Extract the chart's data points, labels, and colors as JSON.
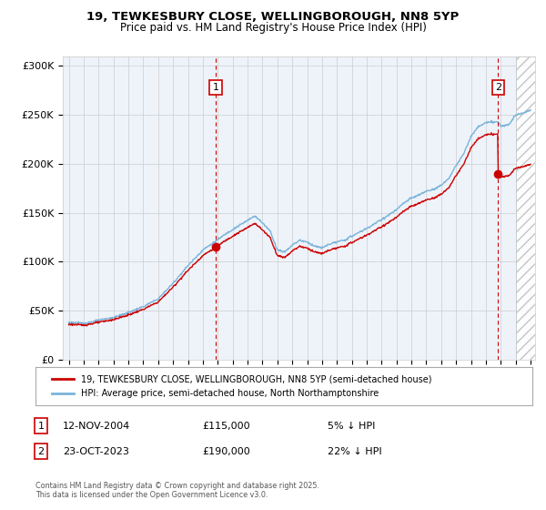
{
  "title_line1": "19, TEWKESBURY CLOSE, WELLINGBOROUGH, NN8 5YP",
  "title_line2": "Price paid vs. HM Land Registry's House Price Index (HPI)",
  "bg_color": "#eef3fa",
  "hpi_color": "#7ab4d8",
  "price_color": "#cc0000",
  "vline_color": "#cc0000",
  "grid_color": "#cccccc",
  "ylim": [
    0,
    310000
  ],
  "yticks": [
    0,
    50000,
    100000,
    150000,
    200000,
    250000,
    300000
  ],
  "ytick_labels": [
    "£0",
    "£50K",
    "£100K",
    "£150K",
    "£200K",
    "£250K",
    "£300K"
  ],
  "sale1_year": 2004.87,
  "sale1_price": 115000,
  "sale2_year": 2023.82,
  "sale2_price": 190000,
  "xstart": 1995,
  "xend": 2026,
  "legend_label1": "19, TEWKESBURY CLOSE, WELLINGBOROUGH, NN8 5YP (semi-detached house)",
  "legend_label2": "HPI: Average price, semi-detached house, North Northamptonshire",
  "footnote1": "Contains HM Land Registry data © Crown copyright and database right 2025.",
  "footnote2": "This data is licensed under the Open Government Licence v3.0.",
  "annot1_label": "1",
  "annot1_date": "12-NOV-2004",
  "annot1_price": "£115,000",
  "annot1_pct": "5% ↓ HPI",
  "annot2_label": "2",
  "annot2_date": "23-OCT-2023",
  "annot2_price": "£190,000",
  "annot2_pct": "22% ↓ HPI"
}
